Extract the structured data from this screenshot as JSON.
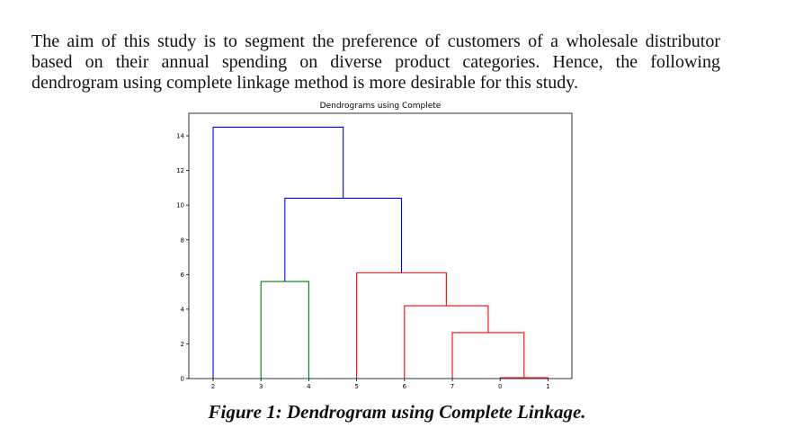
{
  "document": {
    "paragraph": "The aim of this study is to segment the preference of customers of a wholesale distributor based on their annual spending on diverse product categories. Hence, the following dendrogram using complete linkage method is more desirable for this study.",
    "caption": "Figure 1: Dendrogram using Complete Linkage."
  },
  "chart_data": {
    "type": "dendrogram",
    "title": "Dendrograms using Complete",
    "xlabel": "",
    "ylabel": "",
    "leaves": [
      "2",
      "3",
      "4",
      "5",
      "6",
      "7",
      "0",
      "1"
    ],
    "yticks": [
      0,
      2,
      4,
      6,
      8,
      10,
      12,
      14
    ],
    "ylim": [
      0,
      15.3
    ],
    "grid": false,
    "colors": {
      "blue": "#0000ff",
      "green": "#008000",
      "red": "#ff0000"
    },
    "merges": [
      {
        "left": "0",
        "right": "1",
        "height": 0.05,
        "color": "#ff0000"
      },
      {
        "left": "7",
        "right": "0,1",
        "height": 2.65,
        "color": "#ff0000"
      },
      {
        "left": "6",
        "right": "7,0,1",
        "height": 4.2,
        "color": "#ff0000"
      },
      {
        "left": "5",
        "right": "6,7,0,1",
        "height": 6.1,
        "color": "#ff0000"
      },
      {
        "left": "3",
        "right": "4",
        "height": 5.6,
        "color": "#008000"
      },
      {
        "left": "3,4",
        "right": "5,6,7,0,1",
        "height": 10.4,
        "color": "#0000ff"
      },
      {
        "left": "2",
        "right": "3,4,5,6,7,0,1",
        "height": 14.5,
        "color": "#0000ff"
      }
    ]
  }
}
